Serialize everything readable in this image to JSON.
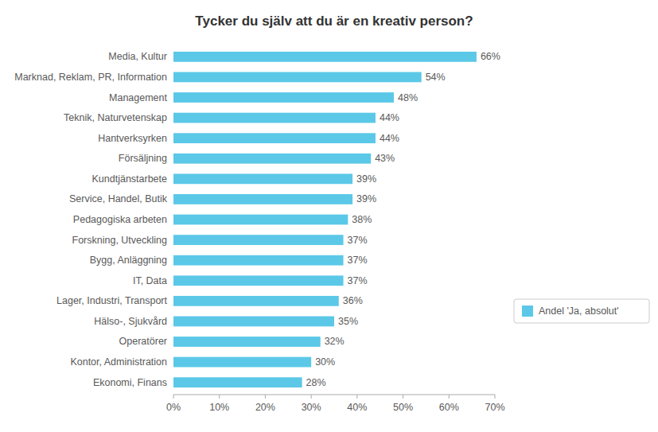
{
  "chart_data": {
    "type": "bar",
    "orientation": "horizontal",
    "title": "Tycker du själv att du är en kreativ person?",
    "categories": [
      "Ekonomi, Finans",
      "Kontor, Administration",
      "Operatörer",
      "Hälso-, Sjukvård",
      "Lager, Industri, Transport",
      "IT, Data",
      "Bygg, Anläggning",
      "Forskning, Utveckling",
      "Pedagogiska arbeten",
      "Service, Handel, Butik",
      "Kundtjänstarbete",
      "Försäljning",
      "Hantverksyrken",
      "Teknik, Naturvetenskap",
      "Management",
      "Marknad, Reklam, PR, Information",
      "Media, Kultur"
    ],
    "series": [
      {
        "name": "Andel 'Ja, absolut'",
        "color": "#5BC8E8",
        "values": [
          28,
          30,
          32,
          35,
          36,
          37,
          37,
          37,
          38,
          39,
          39,
          43,
          44,
          44,
          48,
          54,
          66
        ],
        "value_labels": [
          "28%",
          "30%",
          "32%",
          "35%",
          "36%",
          "37%",
          "37%",
          "37%",
          "38%",
          "39%",
          "39%",
          "43%",
          "44%",
          "44%",
          "48%",
          "54%",
          "66%"
        ]
      }
    ],
    "xlim": [
      0,
      70
    ],
    "xticks": [
      {
        "value": 0,
        "label": "0%"
      },
      {
        "value": 10,
        "label": "10%"
      },
      {
        "value": 20,
        "label": "20%"
      },
      {
        "value": 30,
        "label": "30%"
      },
      {
        "value": 40,
        "label": "40%"
      },
      {
        "value": 50,
        "label": "50%"
      },
      {
        "value": 60,
        "label": "60%"
      },
      {
        "value": 70,
        "label": "70%"
      }
    ],
    "data_labels": true,
    "legend": "lower right",
    "grid": false
  }
}
